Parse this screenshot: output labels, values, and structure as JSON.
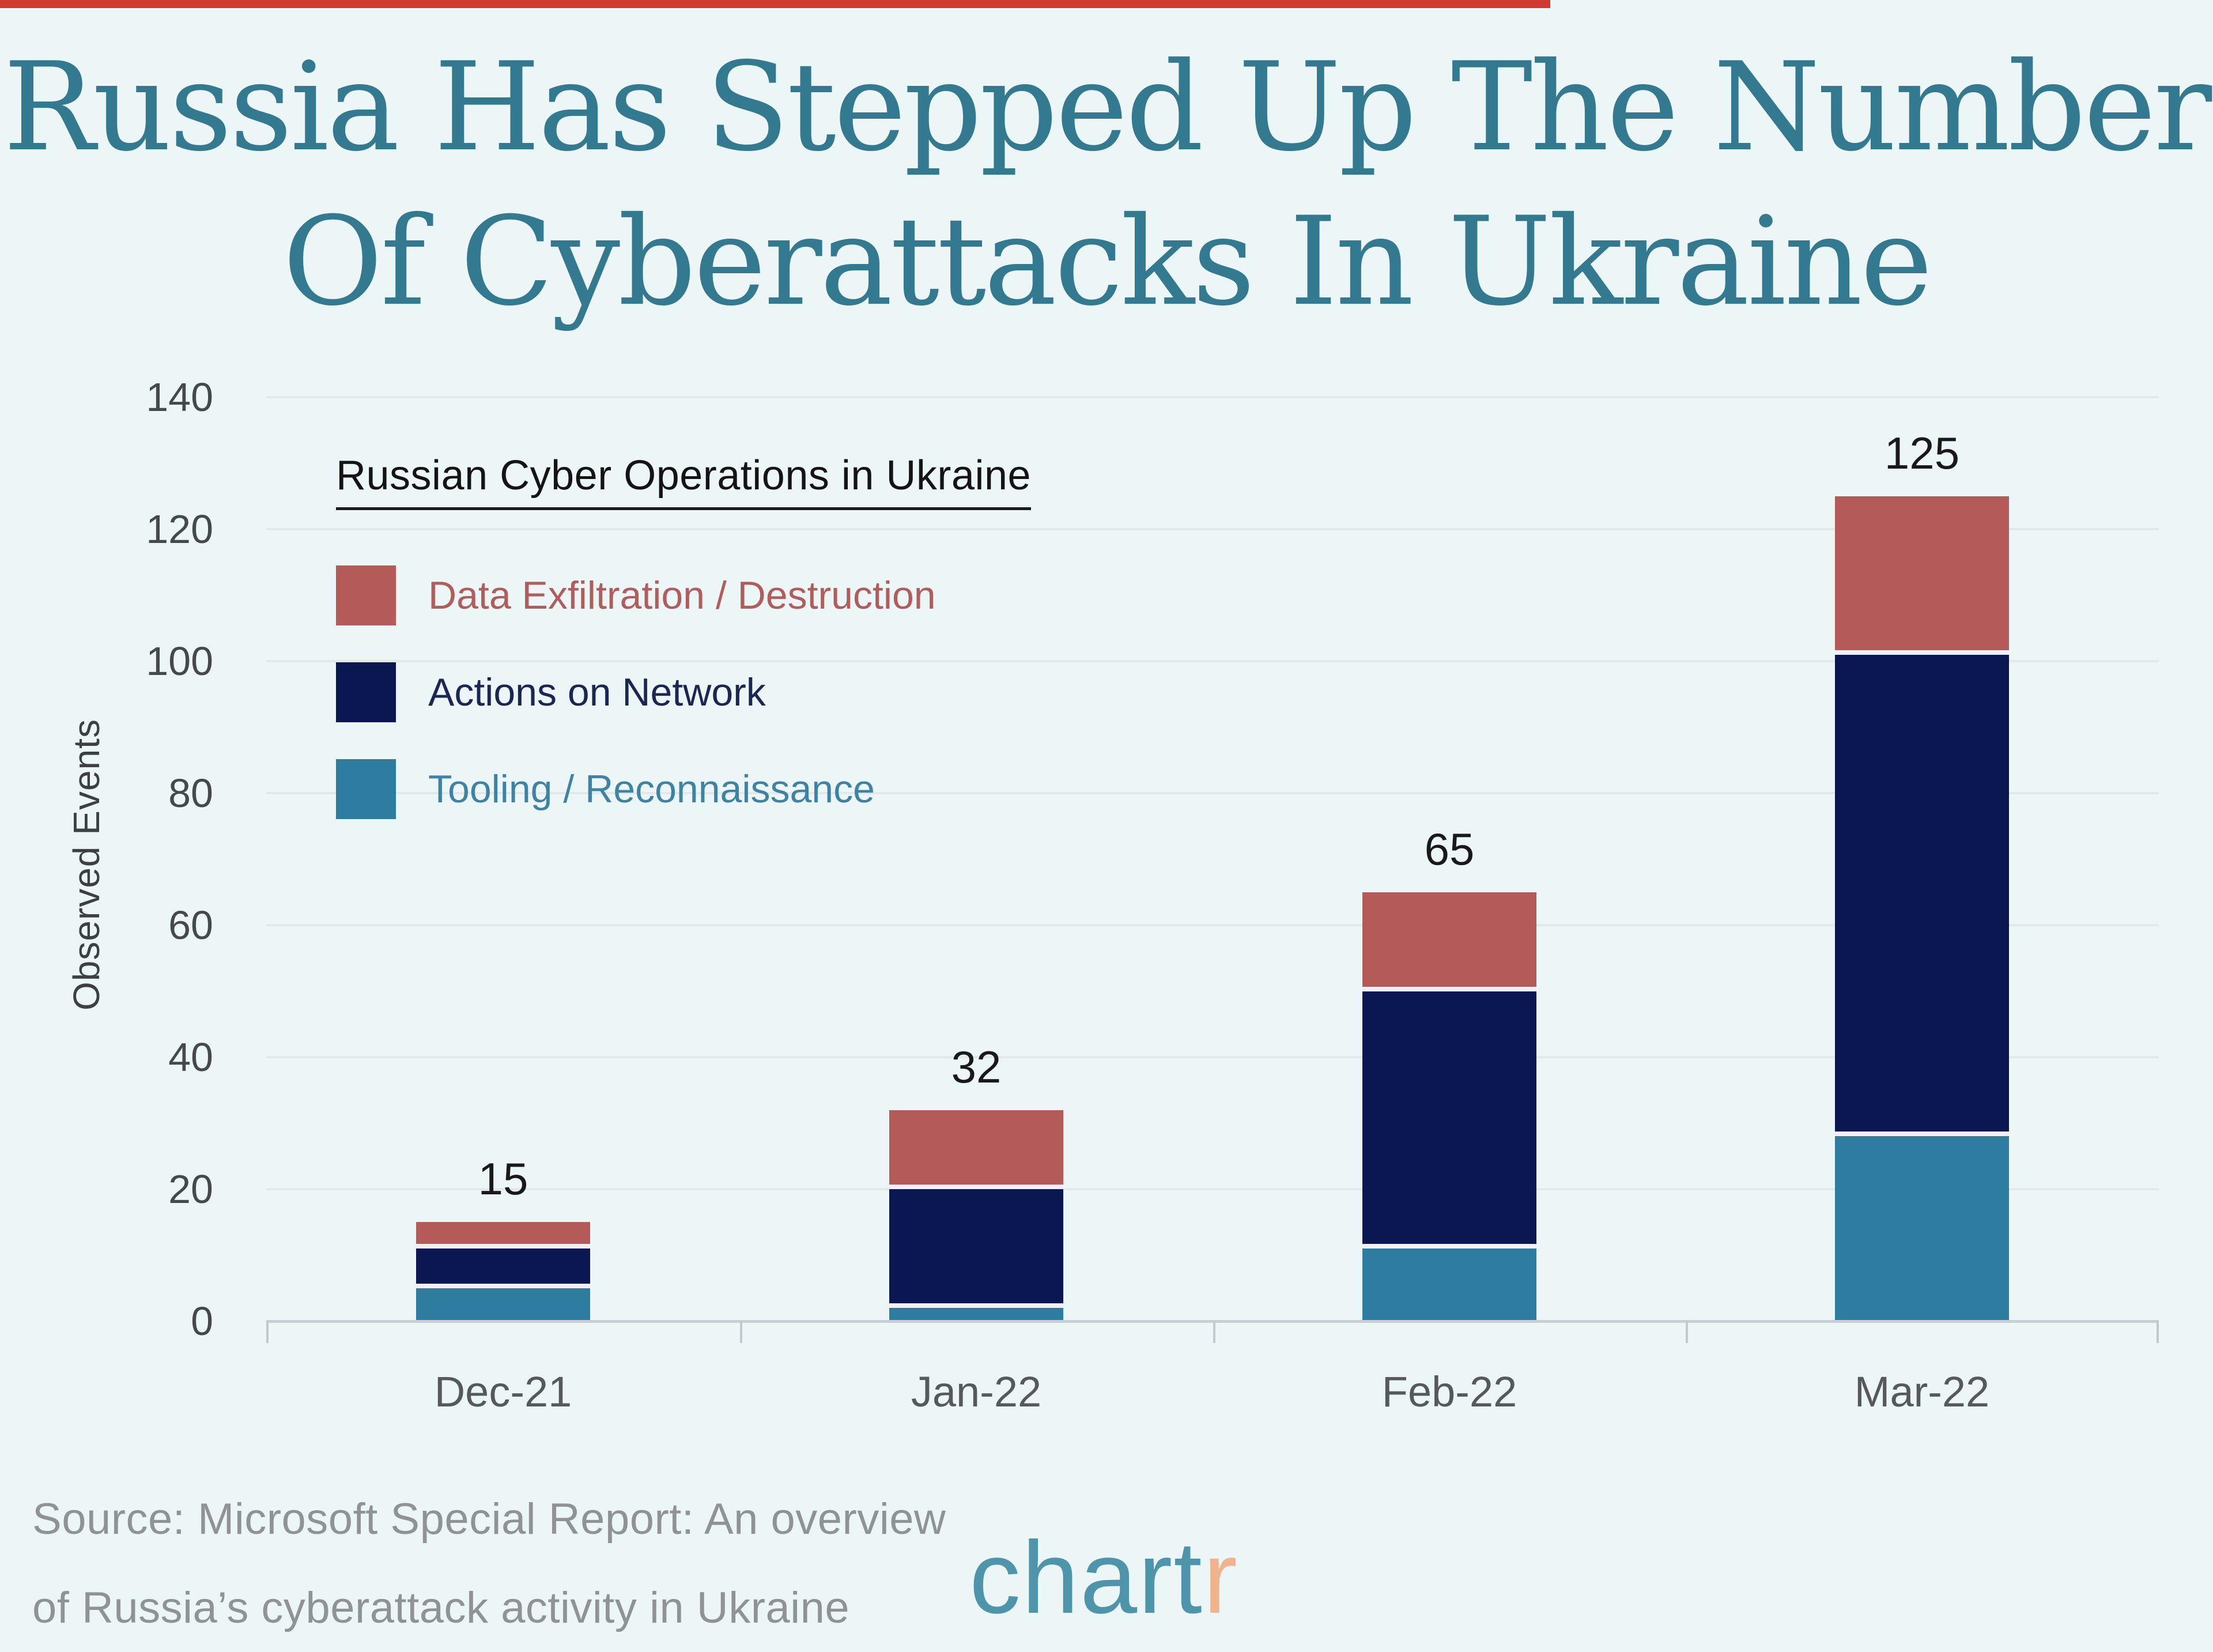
{
  "top_strip_color": "#d03a30",
  "headline": {
    "line1": "Russia Has Stepped Up The Number",
    "line2": "Of Cyberattacks In Ukraine",
    "color": "#337a90"
  },
  "chart_data": {
    "type": "bar",
    "stacked": true,
    "legend_title": "Russian Cyber Operations in Ukraine",
    "categories": [
      "Dec-21",
      "Jan-22",
      "Feb-22",
      "Mar-22"
    ],
    "series": [
      {
        "name": "Tooling / Reconnaissance",
        "color": "#2f7ca1",
        "text_color": "#3e83a4",
        "values": [
          5,
          2,
          11,
          28
        ]
      },
      {
        "name": "Actions on Network",
        "color": "#0a1751",
        "text_color": "#1c2653",
        "values": [
          6,
          18,
          39,
          73
        ]
      },
      {
        "name": "Data Exfiltration / Destruction",
        "color": "#b45a58",
        "text_color": "#b05d5b",
        "values": [
          4,
          12,
          15,
          24
        ]
      }
    ],
    "legend_order_top_to_bottom": [
      "Data Exfiltration / Destruction",
      "Actions on Network",
      "Tooling / Reconnaissance"
    ],
    "totals": [
      15,
      32,
      65,
      125
    ],
    "ylabel": "Observed Events",
    "xlabel": "",
    "y_ticks": [
      0,
      20,
      40,
      60,
      80,
      100,
      120,
      140
    ],
    "ylim": [
      0,
      140
    ],
    "grid": true,
    "legend_position": "inside upper-left"
  },
  "footer": {
    "source_line1": "Source: Microsoft Special Report: An overview",
    "source_line2": "of Russia’s cyberattack activity in Ukraine",
    "logo_chart": "chart",
    "logo_r": "r"
  }
}
